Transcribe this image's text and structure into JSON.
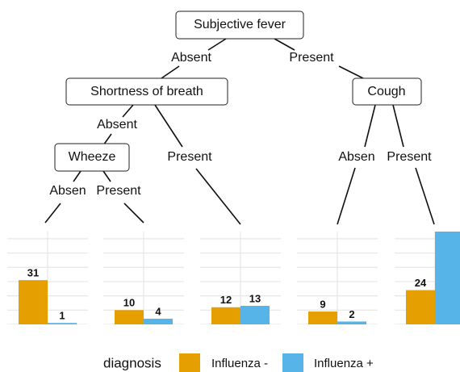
{
  "tree": {
    "nodes": [
      {
        "label": "Subjective fever"
      },
      {
        "label": "Shortness of breath"
      },
      {
        "label": "Cough"
      },
      {
        "label": "Wheeze"
      }
    ],
    "edge_labels": [
      "Absent",
      "Present",
      "Absent",
      "Present",
      "Absen",
      "Present",
      "Absen",
      "Present"
    ]
  },
  "leaves": [
    {
      "values": [
        31,
        1
      ]
    },
    {
      "values": [
        10,
        4
      ]
    },
    {
      "values": [
        12,
        13
      ]
    },
    {
      "values": [
        9,
        2
      ]
    },
    {
      "values": [
        24,
        70
      ]
    }
  ],
  "ylim": [
    0,
    65
  ],
  "yticks": [
    0,
    10,
    20,
    30,
    40,
    50,
    60
  ],
  "legend": {
    "title": "diagnosis",
    "series": [
      {
        "name": "Influenza -",
        "color": "#E69F00"
      },
      {
        "name": "Influenza +",
        "color": "#56B4E9"
      }
    ]
  }
}
